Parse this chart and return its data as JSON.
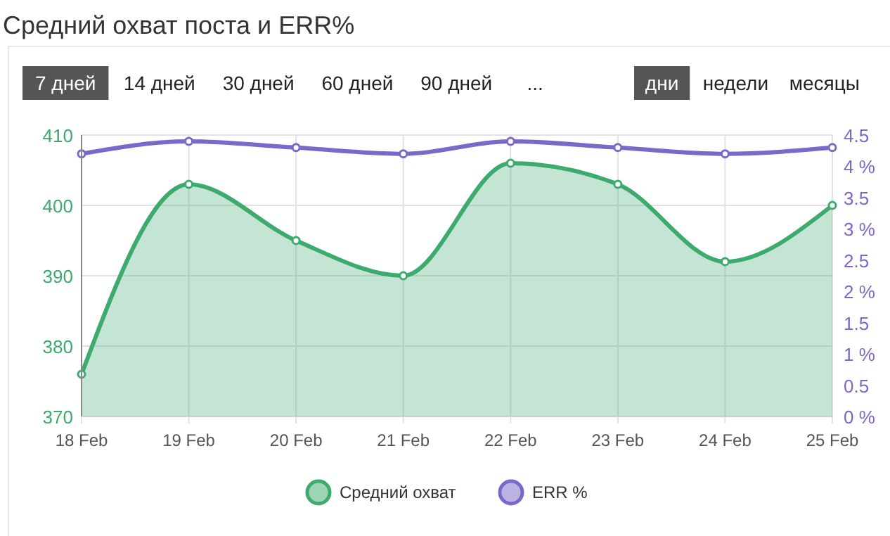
{
  "chart_data": {
    "type": "area",
    "title": "Средний охват поста и ERR%",
    "annotations": [
      "7 дней",
      "14 дней",
      "30 дней",
      "60 дней",
      "90 дней",
      "...",
      "дни",
      "недели",
      "месяцы"
    ],
    "categories": [
      "18 Feb",
      "19 Feb",
      "20 Feb",
      "21 Feb",
      "22 Feb",
      "23 Feb",
      "24 Feb",
      "25 Feb"
    ],
    "series": [
      {
        "name": "Средний охват",
        "color": "#3daa6e",
        "values": [
          376,
          403,
          395,
          390,
          406,
          403,
          392,
          400
        ]
      },
      {
        "name": "ERR %",
        "type": "line",
        "axis": "y2",
        "color": "#7b68c8",
        "values": [
          4.2,
          4.4,
          4.3,
          4.2,
          4.4,
          4.3,
          4.2,
          4.3
        ]
      }
    ],
    "ylim": [
      370,
      410
    ],
    "yticks": [
      370,
      380,
      390,
      400,
      410
    ],
    "y2lim": [
      0,
      4.5
    ],
    "y2ticks": [
      {
        "value": 0,
        "label": "0 %"
      },
      {
        "value": 0.5,
        "label": "0.5"
      },
      {
        "value": 1,
        "label": "1 %"
      },
      {
        "value": 1.5,
        "label": "1.5"
      },
      {
        "value": 2,
        "label": "2 %"
      },
      {
        "value": 2.5,
        "label": "2.5"
      },
      {
        "value": 3,
        "label": "3 %"
      },
      {
        "value": 3.5,
        "label": "3.5"
      },
      {
        "value": 4,
        "label": "4 %"
      },
      {
        "value": 4.5,
        "label": "4.5"
      }
    ],
    "grid": true,
    "legend": "bottom",
    "marker": "circle",
    "line_style": "solid"
  }
}
